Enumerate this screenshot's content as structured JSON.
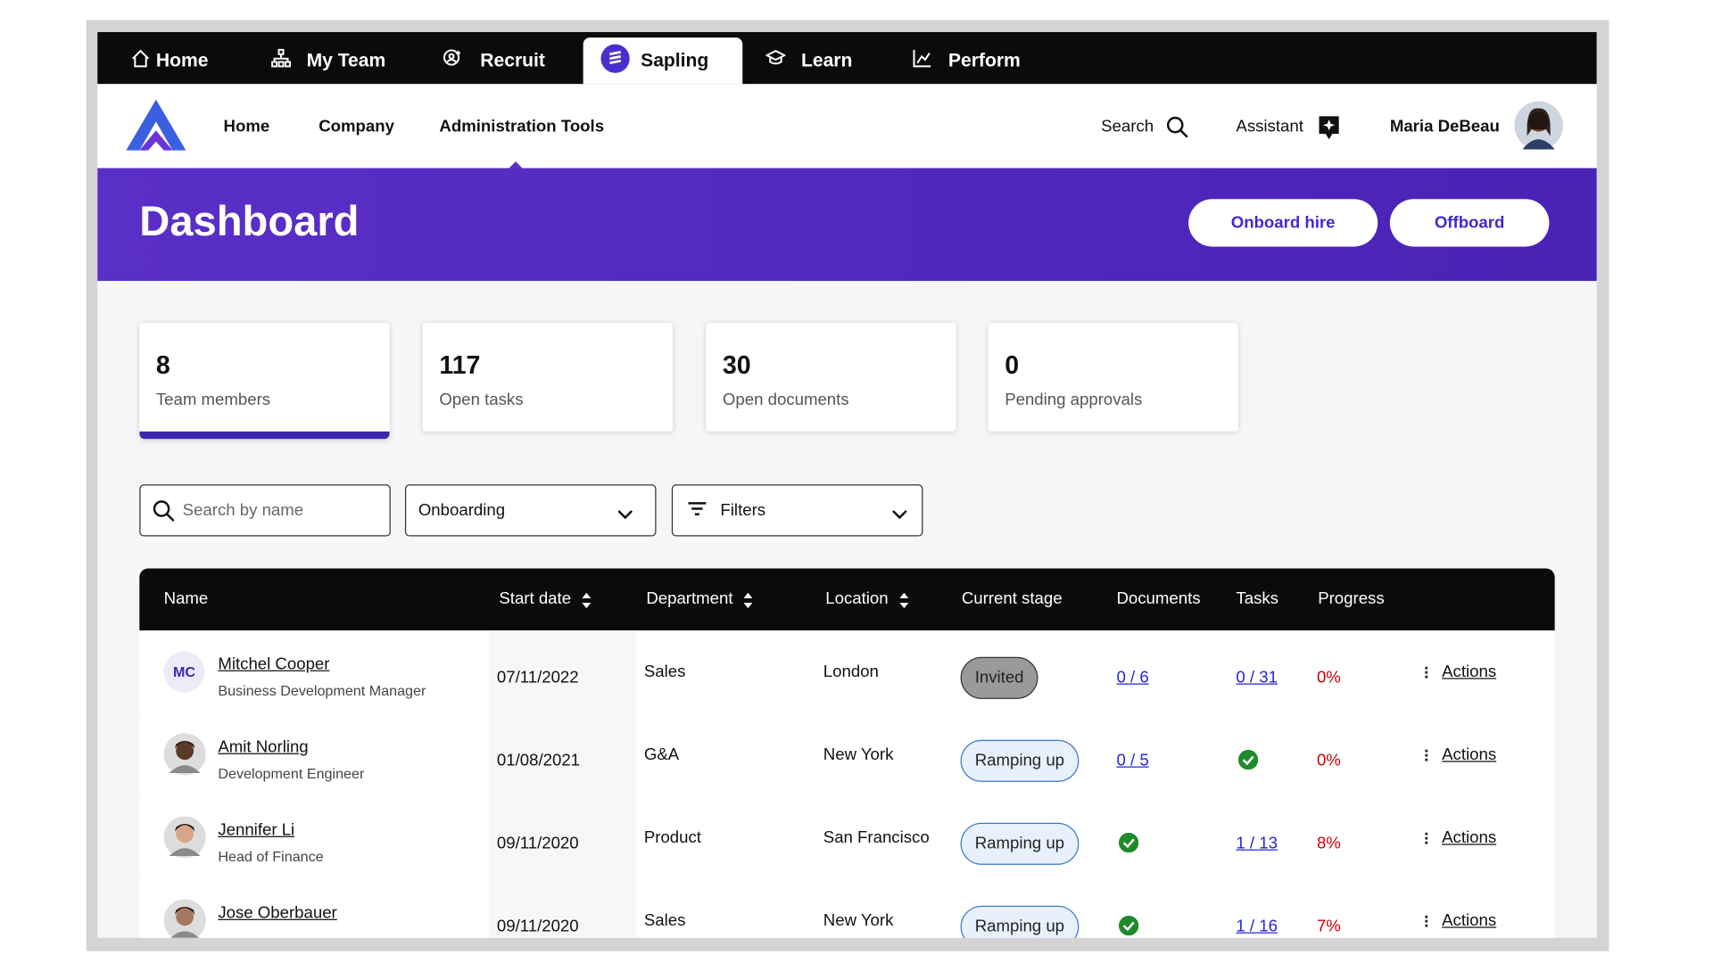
{
  "top_tabs": [
    "Home",
    "My Team",
    "Recruit",
    "Sapling",
    "Learn",
    "Perform"
  ],
  "nav": {
    "links": [
      "Home",
      "Company",
      "Administration Tools"
    ],
    "search": "Search",
    "assistant": "Assistant",
    "user": "Maria DeBeau"
  },
  "header": {
    "title": "Dashboard",
    "buttons": [
      "Onboard hire",
      "Offboard"
    ]
  },
  "stats": [
    {
      "value": 8,
      "label": "Team members"
    },
    {
      "value": 117,
      "label": "Open tasks"
    },
    {
      "value": 30,
      "label": "Open documents"
    },
    {
      "value": 0,
      "label": "Pending approvals"
    }
  ],
  "filters": {
    "search_placeholder": "Search by name",
    "stage": "Onboarding",
    "filters": "Filters"
  },
  "table": {
    "columns": [
      "Name",
      "Start date",
      "Department",
      "Location",
      "Current stage",
      "Documents",
      "Tasks",
      "Progress"
    ],
    "rows": [
      {
        "initials": "MC",
        "name": "Mitchel Cooper",
        "role": "Business Development Manager",
        "start": "07/11/2022",
        "department": "Sales",
        "location": "London",
        "stage": "Invited",
        "documents": "0 / 6",
        "tasks": "0 / 31",
        "progress": "0%",
        "actions": "Actions"
      },
      {
        "initials": null,
        "name": "Amit Norling",
        "role": "Development Engineer",
        "start": "01/08/2021",
        "department": "G&A",
        "location": "New York",
        "stage": "Ramping up",
        "documents": "0 / 5",
        "tasks": null,
        "progress": "0%",
        "actions": "Actions"
      },
      {
        "initials": null,
        "name": "Jennifer Li",
        "role": "Head of Finance",
        "start": "09/11/2020",
        "department": "Product",
        "location": "San Francisco",
        "stage": "Ramping up",
        "documents": null,
        "tasks": "1 / 13",
        "progress": "8%",
        "actions": "Actions"
      },
      {
        "initials": null,
        "name": "Jose Oberbauer",
        "role": null,
        "start": "09/11/2020",
        "department": "Sales",
        "location": "New York",
        "stage": "Ramping up",
        "documents": null,
        "tasks": "1 / 16",
        "progress": "7%",
        "actions": "Actions"
      }
    ]
  }
}
